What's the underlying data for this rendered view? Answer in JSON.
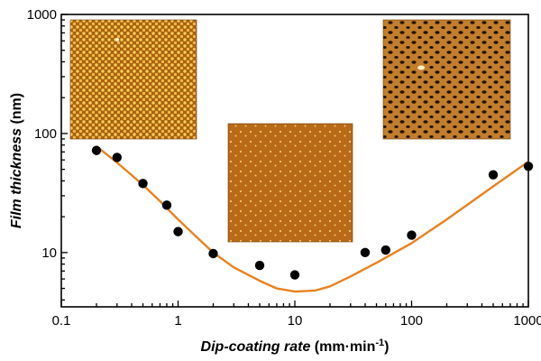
{
  "chart_data": {
    "type": "scatter",
    "xscale": "log",
    "yscale": "log",
    "xlim": [
      0.1,
      1000
    ],
    "ylim": [
      3.5,
      1000
    ],
    "grid": false,
    "legend": "none",
    "xlabel": {
      "italic_part": "Dip-coating rate",
      "plain_part": " (mm·min",
      "superscript": "-1",
      "close": ")"
    },
    "ylabel": {
      "italic_part": "Film thickness",
      "plain_part": " (nm)"
    },
    "x_ticks": [
      {
        "value": 0.1,
        "label": "0.1"
      },
      {
        "value": 1,
        "label": "1"
      },
      {
        "value": 10,
        "label": "10"
      },
      {
        "value": 100,
        "label": "100"
      },
      {
        "value": 1000,
        "label": "1000"
      }
    ],
    "y_ticks": [
      {
        "value": 10,
        "label": "10"
      },
      {
        "value": 100,
        "label": "100"
      },
      {
        "value": 1000,
        "label": "1000"
      }
    ],
    "series": [
      {
        "kind": "points",
        "color": "#000000",
        "points": [
          {
            "x": 0.2,
            "y": 72
          },
          {
            "x": 0.3,
            "y": 63
          },
          {
            "x": 0.5,
            "y": 38
          },
          {
            "x": 0.8,
            "y": 25
          },
          {
            "x": 1.0,
            "y": 15
          },
          {
            "x": 2.0,
            "y": 9.8
          },
          {
            "x": 5.0,
            "y": 7.8
          },
          {
            "x": 10,
            "y": 6.5
          },
          {
            "x": 40,
            "y": 10
          },
          {
            "x": 60,
            "y": 10.5
          },
          {
            "x": 100,
            "y": 14
          },
          {
            "x": 500,
            "y": 45
          },
          {
            "x": 1000,
            "y": 53
          }
        ]
      },
      {
        "kind": "fit",
        "color": "#e8821e",
        "points": [
          {
            "x": 0.2,
            "y": 78
          },
          {
            "x": 0.3,
            "y": 57
          },
          {
            "x": 0.5,
            "y": 37
          },
          {
            "x": 0.7,
            "y": 27
          },
          {
            "x": 1.0,
            "y": 19
          },
          {
            "x": 1.5,
            "y": 13
          },
          {
            "x": 2.0,
            "y": 10
          },
          {
            "x": 3.0,
            "y": 7.5
          },
          {
            "x": 5.0,
            "y": 5.8
          },
          {
            "x": 7.0,
            "y": 5.0
          },
          {
            "x": 10,
            "y": 4.7
          },
          {
            "x": 15,
            "y": 4.8
          },
          {
            "x": 20,
            "y": 5.2
          },
          {
            "x": 30,
            "y": 6.3
          },
          {
            "x": 50,
            "y": 8.2
          },
          {
            "x": 100,
            "y": 12
          },
          {
            "x": 200,
            "y": 19
          },
          {
            "x": 500,
            "y": 36
          },
          {
            "x": 1000,
            "y": 58
          }
        ]
      }
    ],
    "insets": [
      {
        "name": "afm-inset-low-rate",
        "colors": {
          "base": "#a8620e",
          "dot": "#f8d060"
        }
      },
      {
        "name": "afm-inset-mid-rate",
        "colors": {
          "base": "#b86a18",
          "dot": "#f6c860"
        }
      },
      {
        "name": "afm-inset-high-rate",
        "colors": {
          "base": "#c27e2c",
          "dot": "#231405"
        }
      }
    ]
  }
}
